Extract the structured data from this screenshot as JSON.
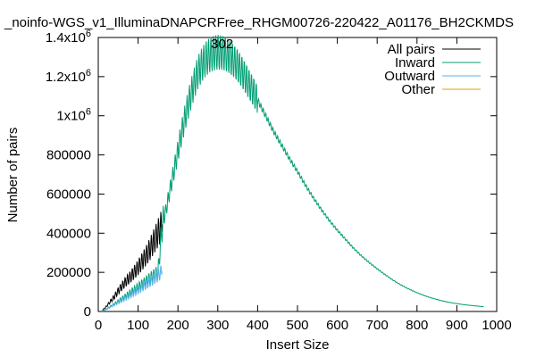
{
  "chart_data": {
    "type": "line",
    "title": "_noinfo-WGS_v1_IlluminaDNAPCRFree_RHGM00726-220422_A01176_BH2CKMDS",
    "xlabel": "Insert Size",
    "ylabel": "Number of pairs",
    "xlim": [
      0,
      1000
    ],
    "ylim": [
      0,
      1400000
    ],
    "x_ticks": [
      "0",
      "100",
      "200",
      "300",
      "400",
      "500",
      "600",
      "700",
      "800",
      "900",
      "1000"
    ],
    "y_ticks": [
      {
        "value": 0,
        "label": "0"
      },
      {
        "value": 200000,
        "label": "200000"
      },
      {
        "value": 400000,
        "label": "400000"
      },
      {
        "value": 600000,
        "label": "600000"
      },
      {
        "value": 800000,
        "label": "800000"
      },
      {
        "value": 1000000,
        "label": "1x10",
        "exp": "6"
      },
      {
        "value": 1200000,
        "label": "1.2x10",
        "exp": "6"
      },
      {
        "value": 1400000,
        "label": "1.4x10",
        "exp": "6"
      }
    ],
    "annotation": {
      "text": "302",
      "x": 302
    },
    "legend_position": "top-right",
    "grid": false,
    "series": [
      {
        "name": "All pairs",
        "color": "#000000",
        "x": [
          10,
          20,
          30,
          40,
          50,
          60,
          70,
          80,
          90,
          100,
          110,
          120,
          130,
          140,
          150,
          160
        ],
        "y": [
          5000,
          25000,
          50000,
          75000,
          105000,
          130000,
          155000,
          175000,
          200000,
          225000,
          255000,
          285000,
          320000,
          360000,
          400000,
          445000
        ]
      },
      {
        "name": "Inward",
        "color": "#009e73",
        "x": [
          10,
          20,
          30,
          40,
          50,
          60,
          70,
          80,
          90,
          100,
          110,
          120,
          130,
          140,
          150,
          160,
          170,
          180,
          190,
          200,
          210,
          220,
          230,
          240,
          250,
          260,
          270,
          280,
          290,
          300,
          302,
          310,
          320,
          330,
          340,
          350,
          360,
          370,
          380,
          390,
          400,
          420,
          440,
          460,
          480,
          500,
          520,
          540,
          560,
          580,
          600,
          620,
          640,
          660,
          680,
          700,
          720,
          740,
          760,
          780,
          800,
          820,
          840,
          860,
          880,
          900,
          920,
          940,
          960,
          967
        ],
        "y": [
          2000,
          12000,
          25000,
          38000,
          52000,
          66000,
          80000,
          95000,
          110000,
          125000,
          140000,
          155000,
          170000,
          185000,
          200000,
          430000,
          520000,
          620000,
          720000,
          820000,
          920000,
          1010000,
          1090000,
          1160000,
          1220000,
          1260000,
          1290000,
          1310000,
          1320000,
          1325000,
          1325000,
          1322000,
          1315000,
          1300000,
          1280000,
          1255000,
          1225000,
          1190000,
          1155000,
          1120000,
          1080000,
          1000000,
          920000,
          850000,
          780000,
          715000,
          645000,
          580000,
          520000,
          465000,
          415000,
          370000,
          325000,
          285000,
          250000,
          218000,
          188000,
          160000,
          135000,
          114000,
          96000,
          80000,
          67000,
          56000,
          47000,
          40000,
          34000,
          30000,
          26000,
          24000
        ]
      },
      {
        "name": "Outward",
        "color": "#56b4e9",
        "x": [
          10,
          20,
          30,
          40,
          50,
          60,
          70,
          80,
          90,
          100,
          110,
          120,
          130,
          140,
          150,
          160
        ],
        "y": [
          2000,
          10000,
          22000,
          34000,
          46000,
          58000,
          70000,
          82000,
          95000,
          108000,
          122000,
          137000,
          152000,
          168000,
          185000,
          205000
        ]
      },
      {
        "name": "Other",
        "color": "#e69f00",
        "x": [],
        "y": []
      }
    ]
  }
}
